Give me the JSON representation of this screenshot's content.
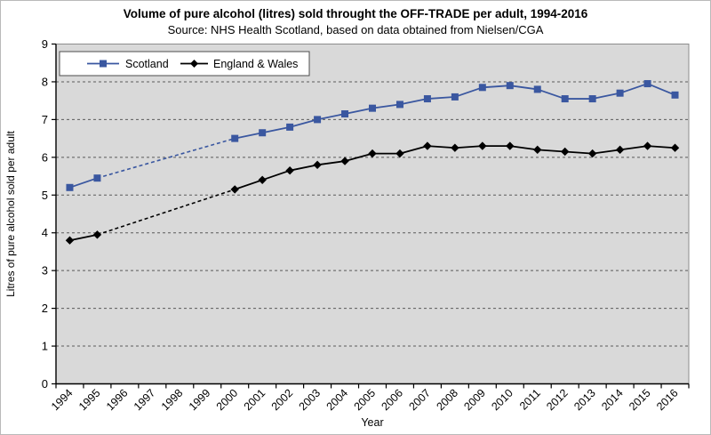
{
  "header": {
    "title": "Volume of pure alcohol (litres) sold throught the OFF-TRADE per adult, 1994-2016",
    "subtitle": "Source: NHS Health Scotland, based on data obtained from Nielsen/CGA"
  },
  "chart_data": {
    "type": "line",
    "title": "Volume of pure alcohol (litres) sold throught the OFF-TRADE per adult, 1994-2016",
    "subtitle": "Source: NHS Health Scotland, based on data obtained from Nielsen/CGA",
    "categories": [
      "1994",
      "1995",
      "1996",
      "1997",
      "1998",
      "1999",
      "2000",
      "2001",
      "2002",
      "2003",
      "2004",
      "2005",
      "2006",
      "2007",
      "2008",
      "2009",
      "2010",
      "2011",
      "2012",
      "2013",
      "2014",
      "2015",
      "2016"
    ],
    "series": [
      {
        "name": "Scotland",
        "color": "#3a57a0",
        "marker": "square",
        "values": [
          5.2,
          5.45,
          null,
          null,
          null,
          null,
          6.5,
          6.65,
          6.8,
          7.0,
          7.15,
          7.3,
          7.4,
          7.55,
          7.6,
          7.85,
          7.9,
          7.8,
          7.55,
          7.55,
          7.7,
          7.95,
          7.65
        ]
      },
      {
        "name": "England & Wales",
        "color": "#000000",
        "marker": "diamond",
        "values": [
          3.8,
          3.95,
          null,
          null,
          null,
          null,
          5.15,
          5.4,
          5.65,
          5.8,
          5.9,
          6.1,
          6.1,
          6.3,
          6.25,
          6.3,
          6.3,
          6.2,
          6.15,
          6.1,
          6.2,
          6.3,
          6.25
        ]
      }
    ],
    "xlabel": "Year",
    "ylabel": "Litres of pure alcohol sold per adult",
    "ylim": [
      0,
      9
    ],
    "ytick_step": 1,
    "yticks": [
      "0",
      "1",
      "2",
      "3",
      "4",
      "5",
      "6",
      "7",
      "8",
      "9"
    ],
    "grid": "horizontal-dashed",
    "gap_style": "dashed (no data 1996-1999)",
    "legend_position": "top-left-inside",
    "colors": {
      "plot_background": "#d9d9d9",
      "gridline": "#5a5a5a",
      "axis": "#000000",
      "legend_background": "#ffffff",
      "legend_border": "#4d4d4d"
    }
  }
}
